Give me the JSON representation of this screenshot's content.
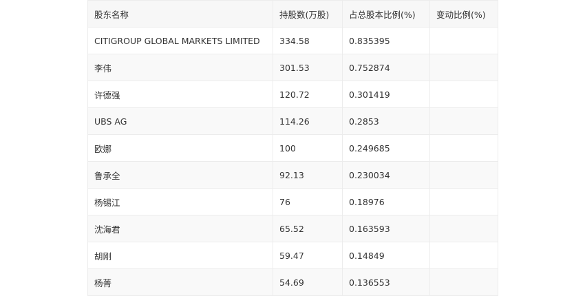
{
  "table": {
    "headers": [
      "股东名称",
      "持股数(万股)",
      "占总股本比例(%)",
      "变动比例(%)"
    ],
    "rows": [
      [
        "CITIGROUP GLOBAL MARKETS LIMITED",
        "334.58",
        "0.835395",
        ""
      ],
      [
        "李伟",
        "301.53",
        "0.752874",
        ""
      ],
      [
        "许德强",
        "120.72",
        "0.301419",
        ""
      ],
      [
        "UBS AG",
        "114.26",
        "0.2853",
        ""
      ],
      [
        "欧娜",
        "100",
        "0.249685",
        ""
      ],
      [
        "鲁承全",
        "92.13",
        "0.230034",
        ""
      ],
      [
        "杨锡江",
        "76",
        "0.18976",
        ""
      ],
      [
        "沈海君",
        "65.52",
        "0.163593",
        ""
      ],
      [
        "胡刚",
        "59.47",
        "0.14849",
        ""
      ],
      [
        "杨菁",
        "54.69",
        "0.136553",
        ""
      ]
    ]
  }
}
